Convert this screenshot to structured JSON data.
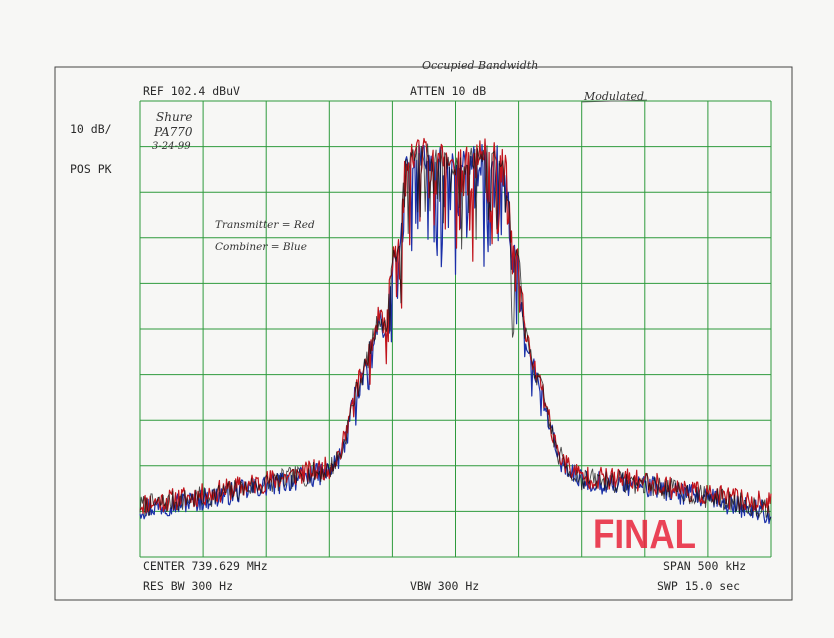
{
  "header": {
    "ref": "REF  102.4 dBuV",
    "atten": "ATTEN 10 dB",
    "scale": "10 dB/",
    "detector": "POS PK"
  },
  "footer": {
    "center": "CENTER 739.629 MHz",
    "span": "SPAN 500 kHz",
    "res_bw": "RES BW 300  Hz",
    "vbw": "VBW 300  Hz",
    "swp": "SWP 15.0  sec"
  },
  "annotations": {
    "title": "Occupied Bandwidth",
    "mode": "Modulated",
    "device_line1": "Shure",
    "device_line2": "PA770",
    "date": "3-24-99",
    "legend_red": "Transmitter = Red",
    "legend_blue": "Combiner = Blue",
    "stamp": "FINAL"
  },
  "colors": {
    "grid": "#2e9a3c",
    "transmitter": "#c0141c",
    "combiner": "#1a2fa8",
    "overlap": "#111111",
    "stamp": "#e8233a"
  },
  "chart_data": {
    "type": "line",
    "title": "Occupied Bandwidth",
    "xlabel": "",
    "ylabel": "",
    "grid": true,
    "xlim": [
      739.379,
      739.879
    ],
    "ylim": [
      2.4,
      102.4
    ],
    "x_unit": "MHz",
    "y_unit": "dBuV",
    "series": [
      {
        "name": "Transmitter",
        "x": [
          739.379,
          739.429,
          739.479,
          739.529,
          739.539,
          739.549,
          739.559,
          739.569,
          739.574,
          739.579,
          739.584,
          739.589,
          739.599,
          739.609,
          739.619,
          739.629,
          739.639,
          739.649,
          739.659,
          739.669,
          739.674,
          739.679,
          739.684,
          739.689,
          739.699,
          739.709,
          739.719,
          739.729,
          739.779,
          739.829,
          739.879
        ],
        "values": [
          14,
          16,
          19,
          22,
          26,
          38,
          46,
          56,
          52,
          68,
          70,
          88,
          92,
          91,
          90,
          89,
          90,
          91,
          92,
          88,
          70,
          68,
          52,
          46,
          38,
          26,
          22,
          20,
          19,
          16,
          14
        ]
      },
      {
        "name": "Combiner",
        "x": [
          739.379,
          739.429,
          739.479,
          739.529,
          739.539,
          739.549,
          739.559,
          739.569,
          739.574,
          739.579,
          739.584,
          739.589,
          739.599,
          739.609,
          739.619,
          739.629,
          739.639,
          739.649,
          739.659,
          739.669,
          739.674,
          739.679,
          739.684,
          739.689,
          739.699,
          739.709,
          739.719,
          739.729,
          739.779,
          739.829,
          739.879
        ],
        "values": [
          13,
          15,
          18,
          21,
          25,
          37,
          45,
          55,
          51,
          67,
          69,
          87,
          91,
          90,
          89,
          88,
          89,
          90,
          91,
          87,
          69,
          67,
          51,
          45,
          37,
          25,
          21,
          19,
          18,
          15,
          12
        ]
      }
    ]
  }
}
